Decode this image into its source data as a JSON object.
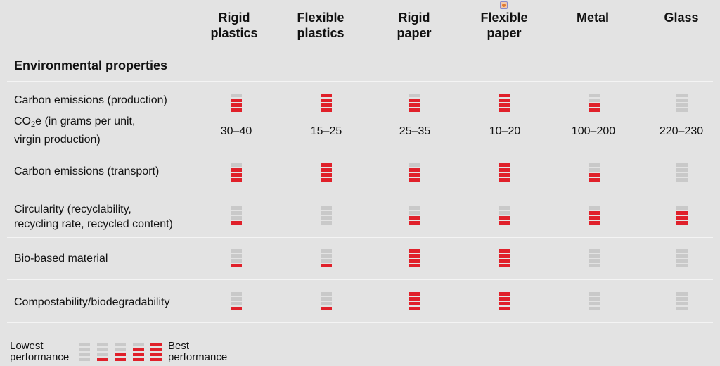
{
  "columns": [
    {
      "line1": "Rigid",
      "line2": "plastics"
    },
    {
      "line1": "Flexible",
      "line2": "plastics"
    },
    {
      "line1": "Rigid",
      "line2": "paper"
    },
    {
      "line1": "Flexible",
      "line2": "paper"
    },
    {
      "line1": "Metal",
      "line2": ""
    },
    {
      "line1": "Glass",
      "line2": ""
    }
  ],
  "section_title": "Environmental properties",
  "co2e": {
    "label_pre": "CO",
    "label_sub": "2",
    "label_post": "e (in grams per unit,",
    "label_line2": "virgin production)",
    "values": [
      "30–40",
      "15–25",
      "25–35",
      "10–20",
      "100–200",
      "220–230"
    ]
  },
  "rows": [
    {
      "label_line1": "Carbon emissions (production)",
      "label_line2": ""
    },
    {
      "label_line1": "Carbon emissions (transport)",
      "label_line2": ""
    },
    {
      "label_line1": "Circularity (recyclability,",
      "label_line2": "recycling rate, recycled content)"
    },
    {
      "label_line1": "Bio-based material",
      "label_line2": ""
    },
    {
      "label_line1": "Compostability/biodegradability",
      "label_line2": ""
    }
  ],
  "legend": {
    "low_line1": "Lowest",
    "low_line2": "performance",
    "best_line1": "Best",
    "best_line2": "performance",
    "levels": [
      0,
      1,
      2,
      3,
      4
    ]
  },
  "colors": {
    "filled": "#e0202a",
    "empty": "#c9c9c9",
    "background": "#e3e3e3"
  },
  "chart_data": {
    "type": "table",
    "scale_max": 4,
    "categories": [
      "Rigid plastics",
      "Flexible plastics",
      "Rigid paper",
      "Flexible paper",
      "Metal",
      "Glass"
    ],
    "series": [
      {
        "name": "Carbon emissions (production)",
        "values": [
          3,
          4,
          3,
          4,
          2,
          0
        ]
      },
      {
        "name": "Carbon emissions (transport)",
        "values": [
          3,
          4,
          3,
          4,
          2,
          0
        ]
      },
      {
        "name": "Circularity (recyclability, recycling rate, recycled content)",
        "values": [
          1,
          0,
          2,
          2,
          3,
          3
        ]
      },
      {
        "name": "Bio-based material",
        "values": [
          1,
          1,
          4,
          4,
          0,
          0
        ]
      },
      {
        "name": "Compostability/biodegradability",
        "values": [
          1,
          1,
          4,
          4,
          0,
          0
        ]
      }
    ],
    "co2e_per_unit_g": [
      "30–40",
      "15–25",
      "25–35",
      "10–20",
      "100–200",
      "220–230"
    ]
  }
}
